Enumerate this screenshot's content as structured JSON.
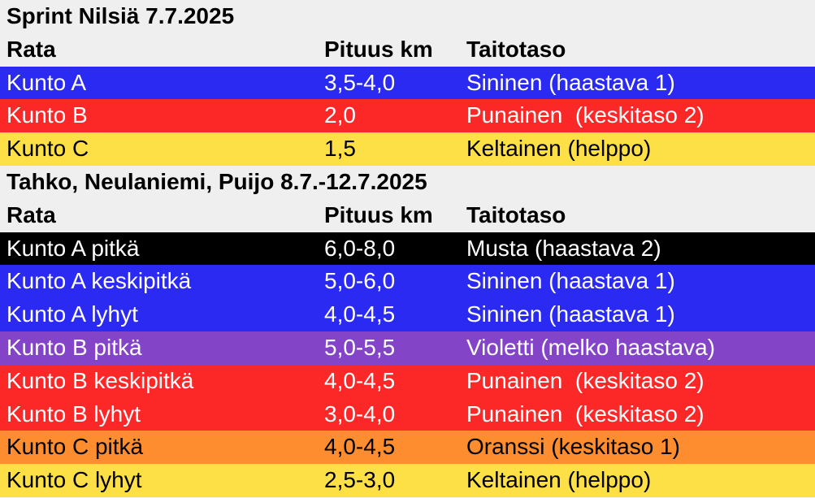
{
  "sections": [
    {
      "title": "Sprint Nilsiä 7.7.2025",
      "headers": [
        "Rata",
        "Pituus km",
        "Taitotaso"
      ],
      "rows": [
        {
          "rata": "Kunto A",
          "pituus": "3,5-4,0",
          "taso": "Sininen (haastava 1)",
          "bg": "#2a2af2",
          "fg": "#ffffff"
        },
        {
          "rata": "Kunto B",
          "pituus": "2,0",
          "taso": "Punainen  (keskitaso 2)",
          "bg": "#fc2828",
          "fg": "#ffffff"
        },
        {
          "rata": "Kunto C",
          "pituus": "1,5",
          "taso": "Keltainen (helppo)",
          "bg": "#fde045",
          "fg": "#000000"
        }
      ]
    },
    {
      "title": "Tahko, Neulaniemi, Puijo 8.7.-12.7.2025",
      "headers": [
        "Rata",
        "Pituus km",
        "Taitotaso"
      ],
      "rows": [
        {
          "rata": "Kunto A pitkä",
          "pituus": "6,0-8,0",
          "taso": "Musta (haastava 2)",
          "bg": "#000000",
          "fg": "#ffffff"
        },
        {
          "rata": "Kunto A keskipitkä",
          "pituus": "5,0-6,0",
          "taso": "Sininen (haastava 1)",
          "bg": "#2a2af2",
          "fg": "#ffffff"
        },
        {
          "rata": "Kunto A lyhyt",
          "pituus": "4,0-4,5",
          "taso": "Sininen (haastava 1)",
          "bg": "#2a2af2",
          "fg": "#ffffff"
        },
        {
          "rata": "Kunto B pitkä",
          "pituus": "5,0-5,5",
          "taso": "Violetti (melko haastava)",
          "bg": "#8444c8",
          "fg": "#ffffff"
        },
        {
          "rata": "Kunto B keskipitkä",
          "pituus": "4,0-4,5",
          "taso": "Punainen  (keskitaso 2)",
          "bg": "#fc2828",
          "fg": "#ffffff"
        },
        {
          "rata": "Kunto B lyhyt",
          "pituus": "3,0-4,0",
          "taso": "Punainen  (keskitaso 2)",
          "bg": "#fc2828",
          "fg": "#ffffff"
        },
        {
          "rata": "Kunto C pitkä",
          "pituus": "4,0-4,5",
          "taso": "Oranssi (keskitaso 1)",
          "bg": "#fd8d2e",
          "fg": "#000000"
        },
        {
          "rata": "Kunto C lyhyt",
          "pituus": "2,5-3,0",
          "taso": "Keltainen (helppo)",
          "bg": "#fde045",
          "fg": "#000000"
        }
      ]
    }
  ]
}
